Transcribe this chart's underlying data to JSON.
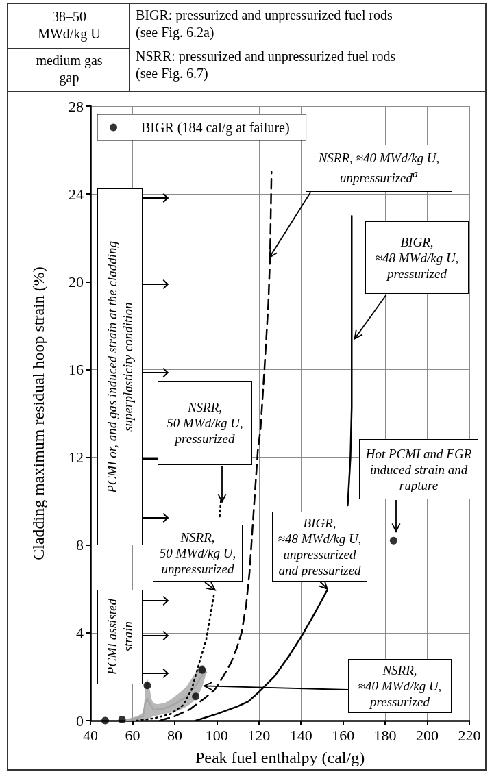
{
  "chart_data": {
    "type": "line",
    "xlabel": "Peak fuel enthalpy (cal/g)",
    "ylabel": "Cladding maximum residual hoop strain (%)",
    "xlim": [
      40,
      220
    ],
    "xticks": [
      40,
      60,
      80,
      100,
      120,
      140,
      160,
      180,
      200,
      220
    ],
    "ylim": [
      0,
      28
    ],
    "yticks": [
      0,
      4,
      8,
      12,
      16,
      20,
      24,
      28
    ],
    "grid": true,
    "legend": "top left",
    "series": [
      {
        "color": "#a6a6a6",
        "line_style": "solid",
        "x": [
          57,
          62,
          65,
          66,
          67,
          68,
          70,
          75,
          80,
          85,
          88,
          90,
          92,
          94,
          95
        ],
        "values": [
          0.02,
          0.1,
          0.2,
          0.8,
          1.0,
          0.8,
          0.5,
          0.55,
          0.75,
          1.05,
          1.35,
          1.6,
          1.9,
          2.15,
          2.2
        ],
        "lower": [
          0,
          0,
          0.02,
          0.05,
          0.08,
          0.1,
          0.2,
          0.3,
          0.4,
          0.6,
          0.8,
          1.0,
          1.3,
          1.8,
          2.2
        ],
        "upper": [
          0.05,
          0.2,
          0.4,
          1.5,
          1.9,
          1.5,
          0.8,
          0.8,
          1.1,
          1.5,
          1.9,
          2.2,
          2.5,
          2.5,
          2.2
        ]
      },
      {
        "color": "#000000",
        "line_style": "dashed",
        "x": [
          73,
          80,
          87,
          94,
          99,
          103,
          106.6,
          109.5,
          111.8,
          114,
          115.6,
          117.5,
          119.5,
          120.8,
          122.7,
          124.5,
          125.3,
          126
        ],
        "values": [
          0,
          0.2,
          0.5,
          1.0,
          1.4,
          2.0,
          2.6,
          3.3,
          4.0,
          5.3,
          6.8,
          9.5,
          12.3,
          13.3,
          16.1,
          19.0,
          21.1,
          25
        ]
      },
      {
        "color": "#000000",
        "line_style": "dotted",
        "x": [
          62,
          70,
          78,
          84,
          88,
          91,
          95,
          98.8,
          100.5,
          101.4,
          102
        ],
        "values": [
          0,
          0.1,
          0.3,
          0.7,
          1.4,
          2.4,
          3.7,
          5.8,
          null,
          9.3,
          10.1
        ]
      },
      {
        "color": "#000000",
        "line_style": "solid",
        "x": [
          90,
          100,
          110,
          115,
          120,
          127.3,
          134,
          140,
          146,
          152.5,
          156,
          159.6,
          162.2,
          163.5,
          164.1,
          164.1
        ],
        "values": [
          0,
          0.3,
          0.65,
          0.87,
          1.3,
          2,
          2.9,
          3.8,
          4.8,
          5.95,
          null,
          null,
          9.8,
          12,
          14.3,
          23
        ]
      },
      {
        "type": "scatter",
        "marker": "circle",
        "color": "#000000",
        "x": [
          47,
          55,
          67,
          90,
          93
        ],
        "values": [
          0,
          0.05,
          1.6,
          1.1,
          2.3
        ]
      },
      {
        "type": "scatter",
        "marker": "circle",
        "name": "BIGR (184 cal/g at failure)",
        "color": "#000000",
        "x": [
          184
        ],
        "values": [
          8.2
        ]
      }
    ],
    "annotations": [
      "38–50\nMWd/kg U",
      "medium gas\ngap",
      "BIGR: pressurized and unpressurized fuel rods\n(see Fig. 6.2a)",
      "NSRR: pressurized and unpressurized fuel rods\n(see Fig. 6.7)",
      "PCMI or, and gas induced strain at the cladding\nsuperplasticity condition",
      "PCMI assisted\nstrain",
      {
        "text": "NSRR, ≈40 MWd/kg U,\nunpressurized$^{a}$",
        "x": 125,
        "y": 21.1
      },
      {
        "text": "BIGR,\n≈48 MWd/kg U,\npressurized",
        "x": 165.5,
        "y": 17.4
      },
      "NSRR,\n50 MWd/kg U,\npressurized",
      "Hot PCMI and FGR\ninduced strain and\nrupture",
      {
        "text": "NSRR,\n50 MWd/kg U,\nunpressurized",
        "x": 99.2,
        "y": 5.95
      },
      {
        "text": "BIGR,\n≈48 MWd/kg U,\nunpressurized\nand pressurized",
        "x": 152.5,
        "y": 6.0
      },
      {
        "text": "NSRR,\n≈40 MWd/kg U,\npressurized",
        "x": 94,
        "y": 1.58
      }
    ]
  }
}
